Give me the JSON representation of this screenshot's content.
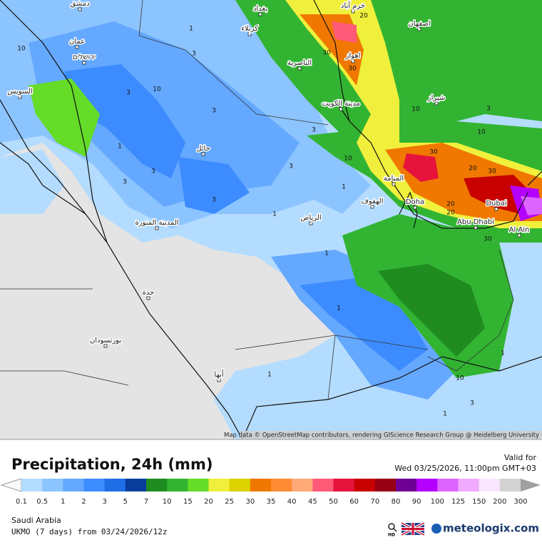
{
  "map": {
    "cities": [
      "دمشق",
      "عمان",
      "ירושלים",
      "بغداد",
      "كربلاء",
      "خرم آباد",
      "اصفهان",
      "الناصرية",
      "اهواز",
      "مدينة الكويت",
      "شيراز",
      "السويس",
      "حائل",
      "المنامة",
      "الهفوف",
      "Doha",
      "Dubai",
      "الرياض",
      "Abu Dhabi",
      "Al Ain",
      "المدينة المنورة",
      "جدة",
      "بورتسودان",
      "أبها"
    ],
    "contour_labels": [
      "10",
      "3",
      "3",
      "3",
      "1",
      "3",
      "3",
      "3",
      "1",
      "3",
      "3",
      "1",
      "10",
      "30",
      "30",
      "20",
      "30",
      "20",
      "30",
      "20",
      "20",
      "30",
      "10",
      "10",
      "3",
      "1",
      "1",
      "10",
      "1",
      "3",
      "1",
      "1",
      "1",
      "10"
    ],
    "attribution": "Map data © OpenStreetMap contributors, rendering GIScience Research Group @ Heidelberg University"
  },
  "header": {
    "title": "Precipitation, 24h (mm)",
    "valid_label": "Valid for",
    "valid_time": "Wed 03/25/2026, 11:00pm GMT+03"
  },
  "legend": {
    "labels": [
      0.1,
      0.5,
      1,
      2,
      3,
      5,
      7,
      10,
      15,
      20,
      25,
      30,
      35,
      40,
      45,
      50,
      60,
      70,
      80,
      90,
      100,
      125,
      150,
      200,
      300
    ],
    "colors": [
      "#b4dcff",
      "#8cc4ff",
      "#64a8ff",
      "#3c8cff",
      "#1e6ee6",
      "#0a3c9c",
      "#1e8c1e",
      "#32b432",
      "#64dc28",
      "#f0f03c",
      "#dcd200",
      "#f07800",
      "#ff8c32",
      "#ffa878",
      "#ff5a78",
      "#e6143c",
      "#c80000",
      "#960014",
      "#6e0096",
      "#b400ff",
      "#dc64ff",
      "#f0aaff",
      "#f8e6ff",
      "#d2d2d2"
    ]
  },
  "footer": {
    "region": "Saudi Arabia",
    "model": "UKMO (7 days) from 03/24/2026/12z",
    "hd": "HD",
    "brand": "meteologix.com"
  }
}
